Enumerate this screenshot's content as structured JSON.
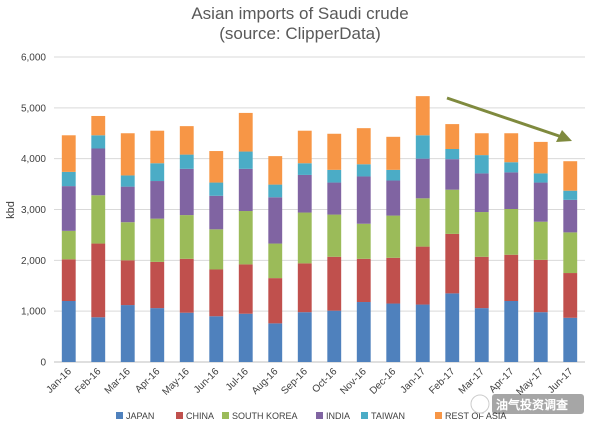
{
  "chart_data": {
    "type": "bar",
    "stacked": true,
    "title": "Asian imports of Saudi crude",
    "subtitle": "(source: ClipperData)",
    "ylabel": "kbd",
    "ylim": [
      0,
      6000
    ],
    "yticks": [
      "0",
      "1,000",
      "2,000",
      "3,000",
      "4,000",
      "5,000",
      "6,000"
    ],
    "categories": [
      "Jan-16",
      "Feb-16",
      "Mar-16",
      "Apr-16",
      "May-16",
      "Jun-16",
      "Jul-16",
      "Aug-16",
      "Sep-16",
      "Oct-16",
      "Nov-16",
      "Dec-16",
      "Jan-17",
      "Feb-17",
      "Mar-17",
      "Apr-17",
      "May-17",
      "Jun-17"
    ],
    "series": [
      {
        "name": "JAPAN",
        "color": "#4f81bd",
        "values": [
          1200,
          880,
          1120,
          1060,
          970,
          900,
          950,
          760,
          980,
          1010,
          1180,
          1150,
          1130,
          1350,
          1060,
          1200,
          980,
          870
        ]
      },
      {
        "name": "CHINA",
        "color": "#c0504d",
        "values": [
          820,
          1450,
          880,
          910,
          1060,
          920,
          970,
          890,
          960,
          1060,
          850,
          900,
          1140,
          1170,
          1010,
          910,
          1030,
          880
        ]
      },
      {
        "name": "SOUTH KOREA",
        "color": "#9bbb59",
        "values": [
          560,
          950,
          750,
          850,
          860,
          790,
          1050,
          680,
          1000,
          830,
          690,
          830,
          950,
          870,
          880,
          900,
          750,
          800
        ]
      },
      {
        "name": "INDIA",
        "color": "#8064a2",
        "values": [
          880,
          920,
          700,
          740,
          910,
          660,
          830,
          910,
          740,
          630,
          930,
          690,
          780,
          600,
          760,
          720,
          770,
          640
        ]
      },
      {
        "name": "TAIWAN",
        "color": "#4bacc6",
        "values": [
          280,
          260,
          220,
          350,
          280,
          260,
          340,
          250,
          230,
          250,
          240,
          210,
          460,
          200,
          360,
          200,
          180,
          180
        ]
      },
      {
        "name": "REST OF ASIA",
        "color": "#f79646",
        "values": [
          720,
          380,
          830,
          640,
          560,
          620,
          760,
          560,
          640,
          710,
          710,
          650,
          770,
          490,
          430,
          570,
          620,
          580
        ]
      }
    ],
    "legend": "bottom",
    "grid": true
  },
  "watermark": {
    "text": "油气投资调查"
  }
}
